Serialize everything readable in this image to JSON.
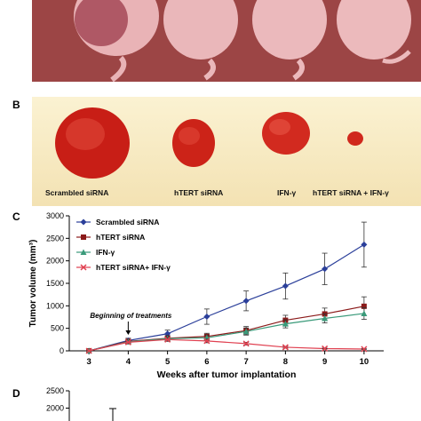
{
  "panels": {
    "a": "",
    "b": "B",
    "c": "C",
    "d": "D"
  },
  "panel_b_labels": [
    "Scrambled siRNA",
    "hTERT siRNA",
    "IFN-γ",
    "hTERT siRNA + IFN-γ"
  ],
  "chart_data": [
    {
      "type": "line",
      "panel": "C",
      "xlabel": "Weeks after tumor implantation",
      "ylabel": "Tumor volume (mm³)",
      "x": [
        3,
        4,
        5,
        6,
        7,
        8,
        9,
        10
      ],
      "xlim": [
        2.5,
        10.5
      ],
      "ylim": [
        0,
        3000
      ],
      "yticks": [
        0,
        500,
        1000,
        1500,
        2000,
        2500,
        3000
      ],
      "series": [
        {
          "name": "Scrambled siRNA",
          "color": "#2b3f9a",
          "marker": "diamond",
          "values": [
            0,
            230,
            380,
            760,
            1110,
            1440,
            1820,
            2360
          ],
          "errors": [
            0,
            50,
            80,
            170,
            220,
            290,
            350,
            500
          ]
        },
        {
          "name": "hTERT siRNA",
          "color": "#8b1a1a",
          "marker": "square",
          "values": [
            0,
            210,
            280,
            320,
            450,
            680,
            820,
            990
          ],
          "errors": [
            0,
            40,
            60,
            70,
            90,
            110,
            130,
            210
          ]
        },
        {
          "name": "IFN-γ",
          "color": "#3a9a7a",
          "marker": "triangle",
          "values": [
            0,
            200,
            270,
            290,
            430,
            600,
            720,
            830
          ],
          "errors": [
            0,
            40,
            50,
            60,
            80,
            90,
            100,
            130
          ]
        },
        {
          "name": "hTERT siRNA+ IFN-γ",
          "color": "#e04050",
          "marker": "x",
          "values": [
            0,
            190,
            250,
            220,
            160,
            80,
            50,
            40
          ],
          "errors": [
            0,
            30,
            40,
            40,
            30,
            20,
            10,
            10
          ]
        }
      ],
      "annotation": "Beginning of treatments",
      "annotation_x": 4
    },
    {
      "type": "bar",
      "panel": "D",
      "ylim": [
        0,
        2500
      ],
      "yticks": [
        2000,
        2500
      ],
      "note": "panel cropped at bottom of image"
    }
  ],
  "colors": {
    "photo_a": "#a24c4c",
    "photo_b_bg": "#f8ecc5",
    "tumor": "#d42a1e"
  }
}
